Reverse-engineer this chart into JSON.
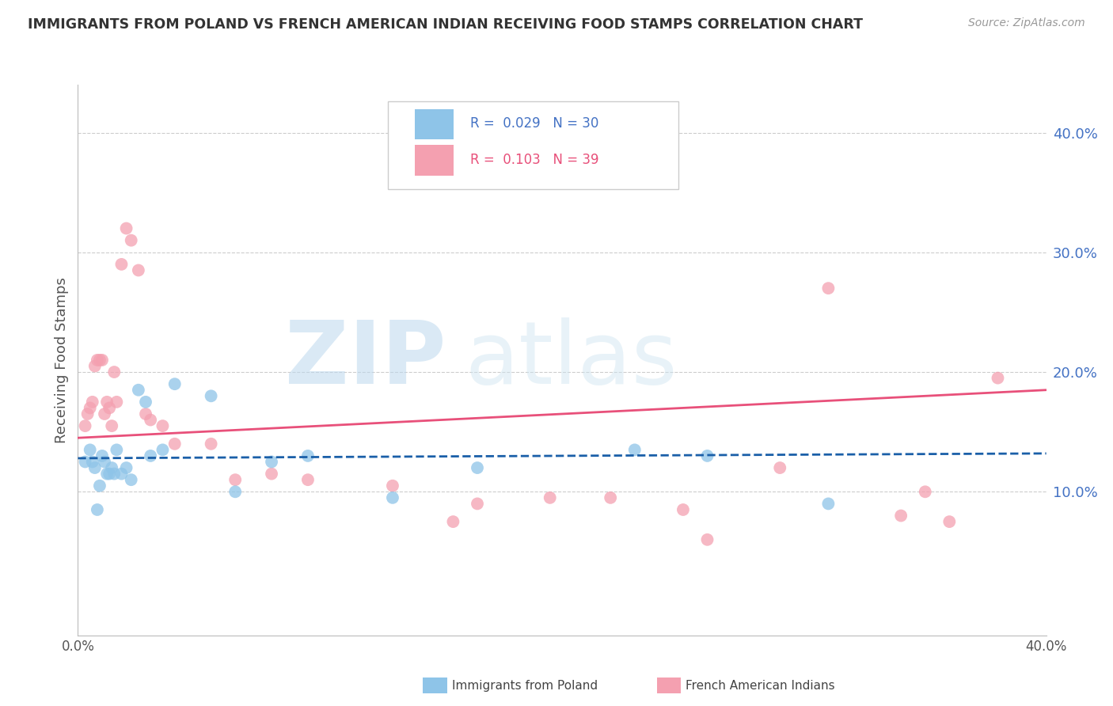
{
  "title": "IMMIGRANTS FROM POLAND VS FRENCH AMERICAN INDIAN RECEIVING FOOD STAMPS CORRELATION CHART",
  "source": "Source: ZipAtlas.com",
  "ylabel": "Receiving Food Stamps",
  "xmin": 0.0,
  "xmax": 0.4,
  "ymin": -0.02,
  "ymax": 0.44,
  "yticks": [
    0.1,
    0.2,
    0.3,
    0.4
  ],
  "ytick_labels": [
    "10.0%",
    "20.0%",
    "30.0%",
    "40.0%"
  ],
  "xticks": [
    0.0,
    0.08,
    0.16,
    0.24,
    0.32,
    0.4
  ],
  "xtick_labels": [
    "0.0%",
    "",
    "",
    "",
    "",
    "40.0%"
  ],
  "blue_R": 0.029,
  "blue_N": 30,
  "pink_R": 0.103,
  "pink_N": 39,
  "blue_color": "#8ec4e8",
  "pink_color": "#f4a0b0",
  "blue_line_color": "#1a5fa8",
  "pink_line_color": "#e8507a",
  "legend_label_blue": "Immigrants from Poland",
  "legend_label_pink": "French American Indians",
  "blue_scatter_x": [
    0.003,
    0.005,
    0.006,
    0.007,
    0.008,
    0.009,
    0.01,
    0.011,
    0.012,
    0.013,
    0.014,
    0.015,
    0.016,
    0.018,
    0.02,
    0.022,
    0.025,
    0.028,
    0.03,
    0.035,
    0.04,
    0.055,
    0.065,
    0.08,
    0.095,
    0.13,
    0.165,
    0.23,
    0.26,
    0.31
  ],
  "blue_scatter_y": [
    0.125,
    0.135,
    0.125,
    0.12,
    0.085,
    0.105,
    0.13,
    0.125,
    0.115,
    0.115,
    0.12,
    0.115,
    0.135,
    0.115,
    0.12,
    0.11,
    0.185,
    0.175,
    0.13,
    0.135,
    0.19,
    0.18,
    0.1,
    0.125,
    0.13,
    0.095,
    0.12,
    0.135,
    0.13,
    0.09
  ],
  "pink_scatter_x": [
    0.003,
    0.004,
    0.005,
    0.006,
    0.007,
    0.008,
    0.009,
    0.01,
    0.011,
    0.012,
    0.013,
    0.014,
    0.015,
    0.016,
    0.018,
    0.02,
    0.022,
    0.025,
    0.028,
    0.03,
    0.035,
    0.04,
    0.055,
    0.065,
    0.08,
    0.095,
    0.13,
    0.155,
    0.165,
    0.195,
    0.22,
    0.25,
    0.26,
    0.29,
    0.31,
    0.34,
    0.35,
    0.36,
    0.38
  ],
  "pink_scatter_y": [
    0.155,
    0.165,
    0.17,
    0.175,
    0.205,
    0.21,
    0.21,
    0.21,
    0.165,
    0.175,
    0.17,
    0.155,
    0.2,
    0.175,
    0.29,
    0.32,
    0.31,
    0.285,
    0.165,
    0.16,
    0.155,
    0.14,
    0.14,
    0.11,
    0.115,
    0.11,
    0.105,
    0.075,
    0.09,
    0.095,
    0.095,
    0.085,
    0.06,
    0.12,
    0.27,
    0.08,
    0.1,
    0.075,
    0.195
  ],
  "blue_trend_x0": 0.0,
  "blue_trend_x1": 0.4,
  "blue_trend_y0": 0.128,
  "blue_trend_y1": 0.132,
  "pink_trend_x0": 0.0,
  "pink_trend_x1": 0.4,
  "pink_trend_y0": 0.145,
  "pink_trend_y1": 0.185
}
